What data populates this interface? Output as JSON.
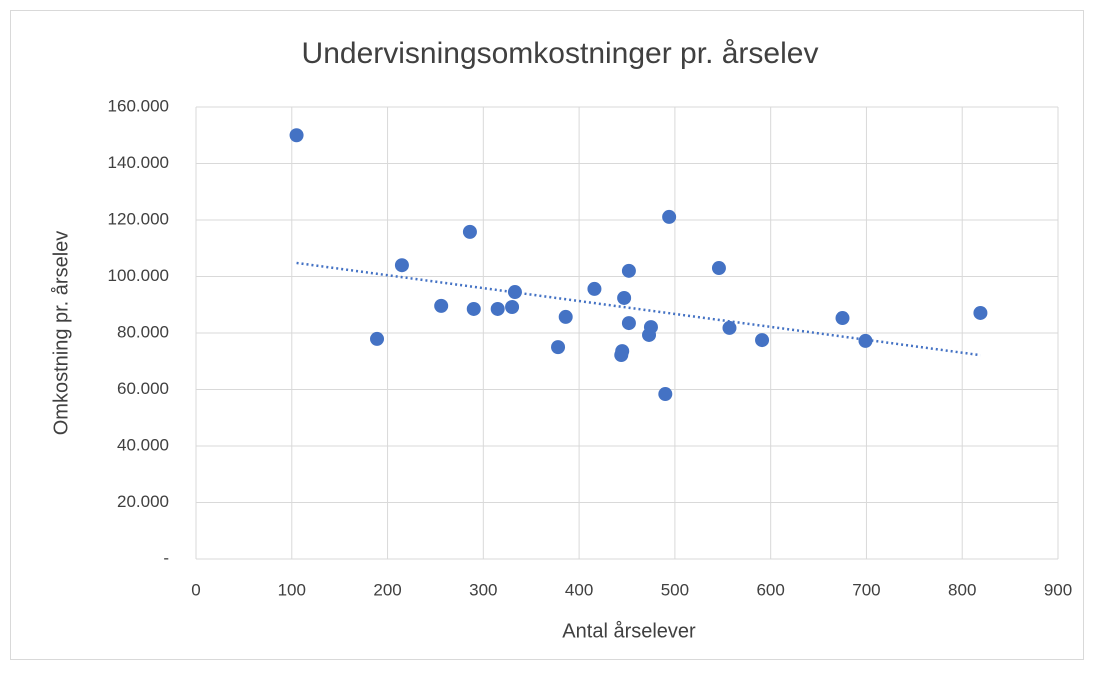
{
  "chart_data": {
    "type": "scatter",
    "title": "Undervisningsomkostninger pr. årselev",
    "x_label": "Antal årselever",
    "y_label": "Omkostning pr. årselev",
    "color": "#4472c4",
    "trendline": "linear",
    "grid": true,
    "x": [
      105,
      189,
      215,
      256,
      286,
      290,
      315,
      330,
      333,
      378,
      386,
      416,
      447,
      445,
      444,
      452,
      452,
      473,
      475,
      490,
      494,
      546,
      557,
      591,
      675,
      699,
      819
    ],
    "values": [
      150000,
      77900,
      104000,
      89600,
      115800,
      88500,
      88500,
      89200,
      94500,
      75000,
      85700,
      95600,
      92400,
      73600,
      72200,
      83500,
      102000,
      79300,
      82100,
      58400,
      121100,
      103000,
      81800,
      77500,
      85300,
      77200,
      87100
    ],
    "xlim": [
      0,
      900
    ],
    "xticks": [
      0,
      100,
      200,
      300,
      400,
      500,
      600,
      700,
      800,
      900
    ],
    "ylim": [
      0,
      160000
    ],
    "yticks": [
      {
        "value": 0,
        "label": "-"
      },
      {
        "value": 20000,
        "label": "20.000"
      },
      {
        "value": 40000,
        "label": "40.000"
      },
      {
        "value": 60000,
        "label": "60.000"
      },
      {
        "value": 80000,
        "label": "80.000"
      },
      {
        "value": 100000,
        "label": "100.000"
      },
      {
        "value": 120000,
        "label": "120.000"
      },
      {
        "value": 140000,
        "label": "140.000"
      },
      {
        "value": 160000,
        "label": "160.000"
      }
    ]
  }
}
